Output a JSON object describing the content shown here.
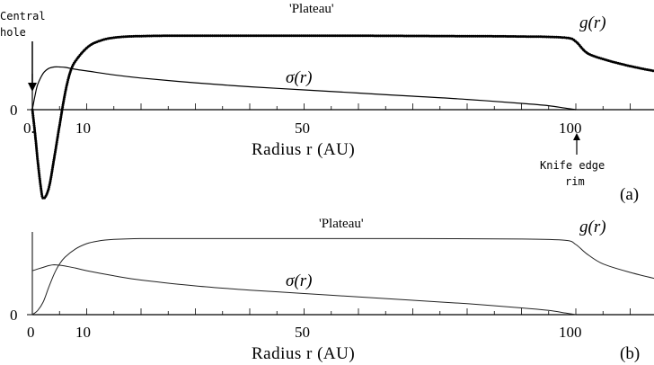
{
  "chart_data": [
    {
      "panel": "(a)",
      "type": "line",
      "xlabel": "Radius r  (AU)",
      "x_tick_labels": [
        "0.",
        "10",
        "50",
        "100"
      ],
      "x_ticks": [
        0,
        10,
        50,
        100
      ],
      "y_tick_labels": [
        "0"
      ],
      "xlim": [
        0,
        115
      ],
      "ylim": [
        -1.2,
        1.0
      ],
      "annotations": {
        "plateau": "'Plateau'",
        "central_hole": [
          "Central",
          "hole"
        ],
        "knife_edge": [
          "Knife edge",
          "rim"
        ]
      },
      "series": [
        {
          "name": "g(r)",
          "label": "g(r)",
          "style": "dotted",
          "x": [
            0,
            0.5,
            1,
            1.5,
            2,
            3,
            4,
            5,
            6,
            7,
            8,
            10,
            12,
            15,
            20,
            30,
            50,
            70,
            90,
            98,
            100,
            102,
            105,
            110,
            115
          ],
          "y": [
            0,
            -0.3,
            -0.65,
            -0.95,
            -1.12,
            -1.0,
            -0.62,
            -0.2,
            0.2,
            0.48,
            0.62,
            0.78,
            0.86,
            0.91,
            0.93,
            0.935,
            0.935,
            0.932,
            0.925,
            0.91,
            0.86,
            0.72,
            0.64,
            0.55,
            0.48
          ]
        },
        {
          "name": "σ(r)",
          "label": "σ(r)",
          "style": "solid",
          "x": [
            0,
            0.5,
            1,
            2,
            3,
            4,
            5,
            6,
            8,
            10,
            15,
            20,
            30,
            40,
            50,
            60,
            70,
            80,
            90,
            95,
            98,
            100
          ],
          "y": [
            0,
            0.18,
            0.32,
            0.46,
            0.52,
            0.54,
            0.54,
            0.535,
            0.51,
            0.49,
            0.44,
            0.4,
            0.34,
            0.29,
            0.25,
            0.21,
            0.17,
            0.13,
            0.08,
            0.05,
            0.02,
            0
          ]
        }
      ],
      "labels": {
        "series_g": "g(r)",
        "series_sigma": "σ(r)",
        "panel": "(a)"
      }
    },
    {
      "panel": "(b)",
      "type": "line",
      "xlabel": "Radius r  (AU)",
      "x_tick_labels": [
        "0",
        "10",
        "50",
        "100"
      ],
      "x_ticks": [
        0,
        10,
        50,
        100
      ],
      "y_tick_labels": [
        "0"
      ],
      "xlim": [
        0,
        115
      ],
      "ylim": [
        0,
        1.0
      ],
      "annotations": {
        "plateau": "'Plateau'"
      },
      "series": [
        {
          "name": "g(r)",
          "label": "g(r)",
          "style": "solid",
          "x": [
            0,
            1,
            2,
            3,
            4,
            5,
            6,
            8,
            10,
            12,
            15,
            20,
            30,
            50,
            70,
            90,
            98,
            100,
            102,
            105,
            110,
            115
          ],
          "y": [
            0,
            0.05,
            0.15,
            0.32,
            0.48,
            0.6,
            0.68,
            0.78,
            0.84,
            0.87,
            0.89,
            0.9,
            0.9,
            0.9,
            0.9,
            0.895,
            0.88,
            0.83,
            0.72,
            0.6,
            0.5,
            0.42
          ]
        },
        {
          "name": "σ(r)",
          "label": "σ(r)",
          "style": "solid",
          "x": [
            0,
            1,
            2,
            3,
            4,
            5,
            6,
            8,
            10,
            15,
            20,
            30,
            40,
            50,
            60,
            70,
            80,
            90,
            95,
            98,
            100
          ],
          "y": [
            0.52,
            0.54,
            0.56,
            0.58,
            0.59,
            0.585,
            0.575,
            0.55,
            0.52,
            0.46,
            0.41,
            0.34,
            0.29,
            0.25,
            0.21,
            0.17,
            0.13,
            0.08,
            0.05,
            0.02,
            0
          ]
        }
      ],
      "labels": {
        "series_g": "g(r)",
        "series_sigma": "σ(r)",
        "panel": "(b)"
      }
    }
  ]
}
